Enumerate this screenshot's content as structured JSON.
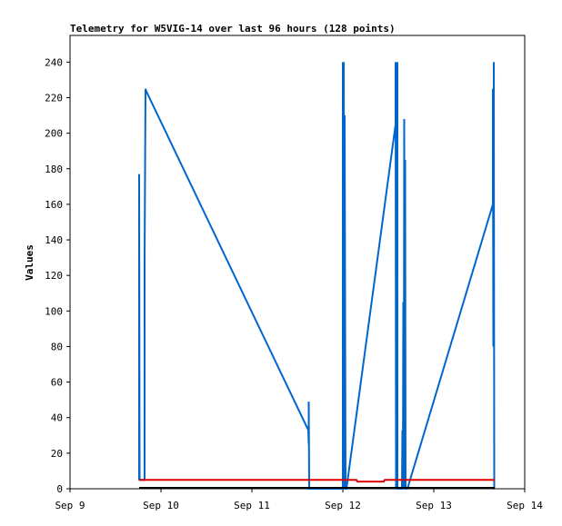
{
  "chart_data": {
    "type": "line",
    "title": "Telemetry for W5VIG-14 over last 96 hours (128 points)",
    "ylabel": "Values",
    "xlabel": "",
    "xlim": [
      9.0,
      14.0
    ],
    "ylim": [
      0,
      255
    ],
    "yticks": [
      0,
      20,
      40,
      60,
      80,
      100,
      120,
      140,
      160,
      180,
      200,
      220,
      240
    ],
    "xticks": [
      {
        "value": 9,
        "label": "Sep 9"
      },
      {
        "value": 10,
        "label": "Sep 10"
      },
      {
        "value": 11,
        "label": "Sep 11"
      },
      {
        "value": 12,
        "label": "Sep 12"
      },
      {
        "value": 13,
        "label": "Sep 13"
      },
      {
        "value": 14,
        "label": "Sep 14"
      }
    ],
    "grid": false,
    "series": [
      {
        "color": "#0066cc",
        "x": [
          9.76,
          9.76,
          9.765,
          9.82,
          9.82,
          9.83,
          9.835,
          11.62,
          11.625,
          11.625,
          11.63,
          12.0,
          12.0,
          12.005,
          12.01,
          12.01,
          12.015,
          12.02,
          12.03,
          12.035,
          12.04,
          12.58,
          12.58,
          12.585,
          12.59,
          12.595,
          12.6,
          12.6,
          12.605,
          12.65,
          12.655,
          12.66,
          12.665,
          12.67,
          12.675,
          12.68,
          12.685,
          12.69,
          12.695,
          12.7,
          12.7,
          12.71,
          13.65,
          13.65,
          13.655,
          13.66,
          13.665,
          13.67
        ],
        "values": [
          5,
          177,
          5,
          5,
          128,
          225,
          224,
          33,
          25,
          49,
          0,
          0,
          240,
          0,
          145,
          240,
          0,
          210,
          0,
          0,
          0,
          205,
          240,
          0,
          240,
          0,
          240,
          0,
          0,
          0,
          33,
          0,
          105,
          0,
          208,
          0,
          185,
          0,
          0,
          0,
          0,
          0,
          160,
          225,
          80,
          240,
          0,
          0
        ]
      },
      {
        "color": "#dd0000",
        "x": [
          9.76,
          12.15,
          12.16,
          12.45,
          12.46,
          13.67
        ],
        "values": [
          5,
          5,
          4,
          4,
          5,
          5
        ]
      },
      {
        "color": "#000000",
        "x": [
          9.76,
          13.67
        ],
        "values": [
          0.5,
          0.5
        ]
      }
    ]
  }
}
